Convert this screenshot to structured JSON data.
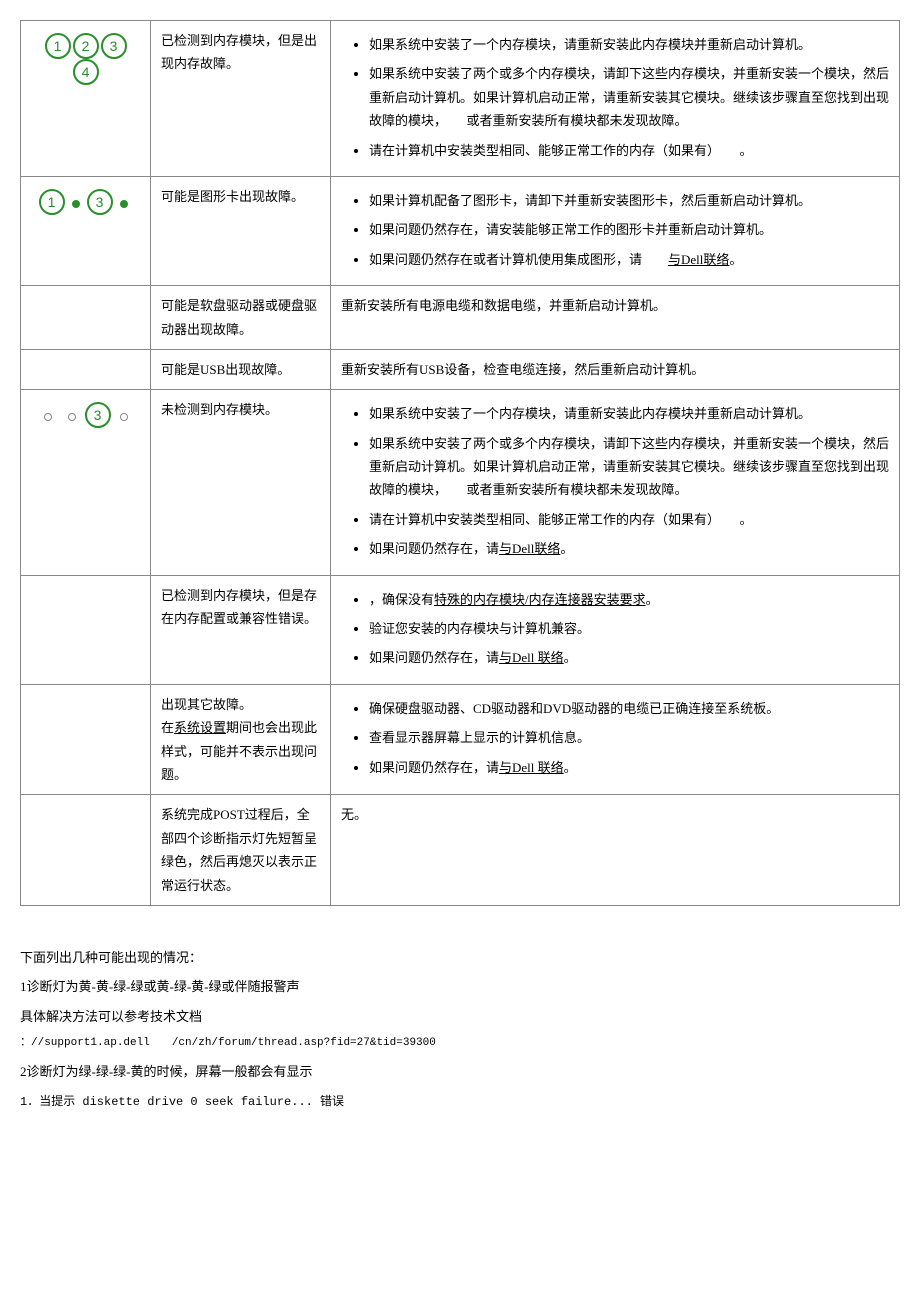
{
  "rows": [
    {
      "indicator": {
        "type": "circled-all"
      },
      "desc": "已检测到内存模块，但是出现内存故障。",
      "action_items": [
        "如果系统中安装了一个内存模块，请重新安装此内存模块并重新启动计算机。",
        "如果系统中安装了两个或多个内存模块，请卸下这些内存模块，并重新安装一个模块，然后重新启动计算机。如果计算机启动正常，请重新安装其它模块。继续该步骤直至您找到出现故障的模块，　　或者重新安装所有模块都未发现故障。",
        "请在计算机中安装类型相同、能够正常工作的内存（如果有）　　。"
      ]
    },
    {
      "indicator": {
        "type": "1dot3dot"
      },
      "desc": "可能是图形卡出现故障。",
      "action_items": [
        "如果计算机配备了图形卡，请卸下并重新安装图形卡，然后重新启动计算机。",
        "如果问题仍然存在，请安装能够正常工作的图形卡并重新启动计算机。",
        {
          "prefix": "如果问题仍然存在或者计算机使用集成图形，请　　",
          "link": "与Dell联络",
          "suffix": "。"
        }
      ]
    },
    {
      "indicator": {
        "type": "blank"
      },
      "desc": "可能是软盘驱动器或硬盘驱动器出现故障。",
      "plain": "重新安装所有电源电缆和数据电缆，并重新启动计算机。"
    },
    {
      "indicator": {
        "type": "blank"
      },
      "desc": "可能是USB出现故障。",
      "plain": "重新安装所有USB设备，检查电缆连接，然后重新启动计算机。"
    },
    {
      "indicator": {
        "type": "hollow3"
      },
      "desc": "未检测到内存模块。",
      "action_items": [
        "如果系统中安装了一个内存模块，请重新安装此内存模块并重新启动计算机。",
        "如果系统中安装了两个或多个内存模块，请卸下这些内存模块，并重新安装一个模块，然后重新启动计算机。如果计算机启动正常，请重新安装其它模块。继续该步骤直至您找到出现故障的模块，　　或者重新安装所有模块都未发现故障。",
        "请在计算机中安装类型相同、能够正常工作的内存（如果有）　　。",
        {
          "prefix": "如果问题仍然存在，请",
          "link": "与Dell联络",
          "suffix": "。"
        }
      ]
    },
    {
      "indicator": {
        "type": "blank"
      },
      "desc": "已检测到内存模块，但是存在内存配置或兼容性错误。",
      "action_items": [
        {
          "prefix": "，确保没有",
          "link": "特殊的内存模块/内存连接器安装要求",
          "suffix": "。"
        },
        "验证您安装的内存模块与计算机兼容。",
        {
          "prefix": "如果问题仍然存在，请",
          "link": "与Dell 联络",
          "suffix": "。"
        }
      ]
    },
    {
      "indicator": {
        "type": "blank"
      },
      "desc_parts": [
        {
          "text": "出现其它故障。"
        },
        {
          "prefix": "在",
          "link": "系统设置",
          "suffix": "期间也会出现此样式，可能并不表示出现问题。"
        }
      ],
      "action_items": [
        "确保硬盘驱动器、CD驱动器和DVD驱动器的电缆已正确连接至系统板。",
        "查看显示器屏幕上显示的计算机信息。",
        {
          "prefix": "如果问题仍然存在，请",
          "link": "与Dell 联络",
          "suffix": "。"
        }
      ]
    },
    {
      "indicator": {
        "type": "blank"
      },
      "desc": "系统完成POST过程后，全部四个诊断指示灯先短暂呈绿色，然后再熄灭以表示正常运行状态。",
      "plain": "无。"
    }
  ],
  "footer": {
    "l1": "下面列出几种可能出现的情况：",
    "l2": "1诊断灯为黄-黄-绿-绿或黄-绿-黄-绿或伴随报警声",
    "l3": "具体解决方法可以参考技术文档",
    "l4": "：//support1.ap.dell　　/cn/zh/forum/thread.asp?fid=27&tid=39300",
    "l5": "2诊断灯为绿-绿-绿-黄的时候，屏幕一般都会有显示",
    "l6": "1．当提示  diskette drive 0 seek failure...  错误"
  },
  "colors": {
    "green": "#2a8f2a"
  }
}
